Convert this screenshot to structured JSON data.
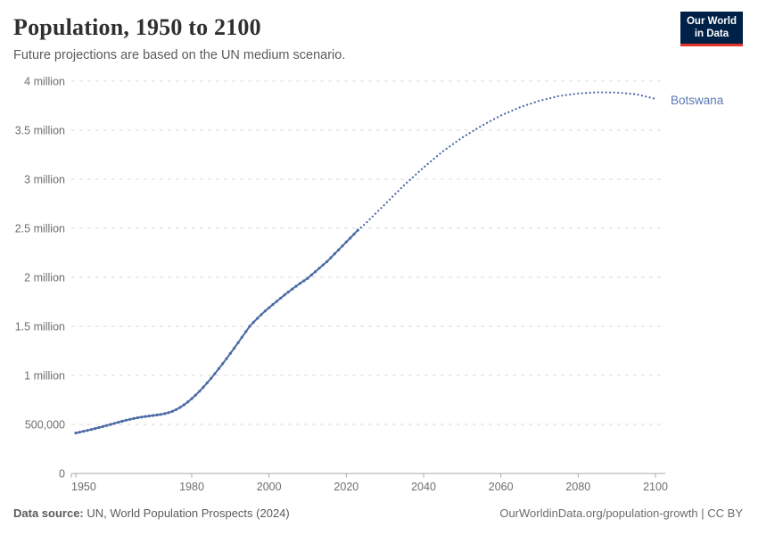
{
  "header": {
    "title": "Population, 1950 to 2100",
    "subtitle": "Future projections are based on the UN medium scenario.",
    "logo": {
      "line1": "Our World",
      "line2": "in Data"
    }
  },
  "footer": {
    "source_label": "Data source:",
    "source_text": " UN, World Population Prospects (2024)",
    "right_text": "OurWorldinData.org/population-growth | CC BY"
  },
  "colors": {
    "line": "#4c6ba5",
    "entity_label": "#5b79b4",
    "grid": "#dadada",
    "axis": "#a8a8a8",
    "tick_label": "#6e6e6e",
    "logo_bg": "#002147",
    "logo_red": "#e5352d"
  },
  "chart_data": {
    "type": "line",
    "title": "Population, 1950 to 2100",
    "subtitle": "Future projections are based on the UN medium scenario.",
    "entity": "Botswana",
    "series_label": "Botswana",
    "unit": "people",
    "xlim": [
      1950,
      2100
    ],
    "ylim": [
      0,
      4000000
    ],
    "grid": "dashed horizontal",
    "legend_position": "end-of-line label",
    "x_ticks": [
      1950,
      1980,
      2000,
      2020,
      2040,
      2060,
      2080,
      2100
    ],
    "y_ticks": [
      {
        "value": 0,
        "label": "0"
      },
      {
        "value": 500000,
        "label": "500,000"
      },
      {
        "value": 1000000,
        "label": "1 million"
      },
      {
        "value": 1500000,
        "label": "1.5 million"
      },
      {
        "value": 2000000,
        "label": "2 million"
      },
      {
        "value": 2500000,
        "label": "2.5 million"
      },
      {
        "value": 3000000,
        "label": "3 million"
      },
      {
        "value": 3500000,
        "label": "3.5 million"
      },
      {
        "value": 4000000,
        "label": "4 million"
      }
    ],
    "historical": {
      "style": "solid line with year markers",
      "start_year": 1950,
      "end_year": 2023,
      "values": [
        413000,
        421000,
        430000,
        439000,
        448000,
        458000,
        468000,
        478000,
        489000,
        500000,
        511000,
        522000,
        533000,
        543000,
        552000,
        560000,
        568000,
        575000,
        581000,
        586000,
        591000,
        596000,
        602000,
        610000,
        620000,
        634000,
        652000,
        674000,
        700000,
        730000,
        763000,
        799000,
        838000,
        880000,
        924000,
        970000,
        1018000,
        1068000,
        1119000,
        1171000,
        1224000,
        1278000,
        1333000,
        1389000,
        1445000,
        1500000,
        1542000,
        1582000,
        1620000,
        1656000,
        1690000,
        1723000,
        1755000,
        1787000,
        1819000,
        1850000,
        1880000,
        1909000,
        1937000,
        1964000,
        1990000,
        2024000,
        2058000,
        2092000,
        2126000,
        2160000,
        2200000,
        2240000,
        2280000,
        2320000,
        2360000,
        2400000,
        2440000,
        2481000
      ]
    },
    "projection": {
      "style": "dotted line (UN medium scenario)",
      "years": [
        2023,
        2024,
        2025,
        2030,
        2035,
        2040,
        2045,
        2050,
        2055,
        2060,
        2065,
        2070,
        2075,
        2080,
        2085,
        2090,
        2095,
        2100
      ],
      "values": [
        2481000,
        2515000,
        2550000,
        2745000,
        2940000,
        3120000,
        3285000,
        3425000,
        3545000,
        3650000,
        3735000,
        3800000,
        3848000,
        3875000,
        3886000,
        3884000,
        3866000,
        3820000
      ]
    }
  }
}
